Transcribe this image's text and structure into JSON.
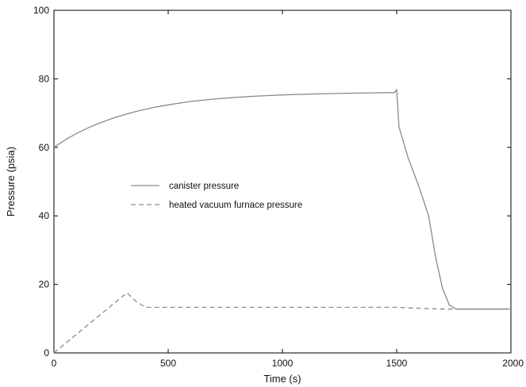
{
  "chart_data": {
    "type": "line",
    "title": "",
    "xlabel": "Time (s)",
    "ylabel": "Pressure (psia)",
    "xlim": [
      0,
      2000
    ],
    "ylim": [
      0,
      100
    ],
    "x_ticks": [
      0,
      500,
      1000,
      1500,
      2000
    ],
    "y_ticks": [
      0,
      20,
      40,
      60,
      80,
      100
    ],
    "grid": false,
    "legend_position": "center-left",
    "series": [
      {
        "name": "canister pressure",
        "style": "solid",
        "color": "#8a8a8a",
        "points": [
          [
            0,
            60
          ],
          [
            50,
            62.2
          ],
          [
            100,
            64.1
          ],
          [
            150,
            65.7
          ],
          [
            200,
            67.1
          ],
          [
            250,
            68.3
          ],
          [
            300,
            69.4
          ],
          [
            350,
            70.3
          ],
          [
            400,
            71.1
          ],
          [
            450,
            71.8
          ],
          [
            500,
            72.4
          ],
          [
            600,
            73.4
          ],
          [
            700,
            74.1
          ],
          [
            800,
            74.6
          ],
          [
            900,
            75
          ],
          [
            1000,
            75.3
          ],
          [
            1100,
            75.5
          ],
          [
            1200,
            75.7
          ],
          [
            1300,
            75.8
          ],
          [
            1400,
            75.9
          ],
          [
            1490,
            76
          ],
          [
            1500,
            76.8
          ],
          [
            1510,
            66
          ],
          [
            1550,
            57
          ],
          [
            1600,
            48
          ],
          [
            1640,
            40
          ],
          [
            1670,
            28
          ],
          [
            1700,
            19
          ],
          [
            1730,
            14
          ],
          [
            1760,
            12.8
          ],
          [
            1800,
            12.8
          ],
          [
            1900,
            12.8
          ],
          [
            2000,
            12.8
          ]
        ]
      },
      {
        "name": "heated vacuum furnace pressure",
        "style": "dashed",
        "color": "#8a8a8a",
        "points": [
          [
            0,
            0
          ],
          [
            100,
            5.5
          ],
          [
            200,
            11
          ],
          [
            300,
            16.5
          ],
          [
            320,
            17.5
          ],
          [
            360,
            15
          ],
          [
            400,
            13.3
          ],
          [
            500,
            13.3
          ],
          [
            1000,
            13.3
          ],
          [
            1500,
            13.3
          ],
          [
            1600,
            13
          ],
          [
            1700,
            12.8
          ],
          [
            2000,
            12.8
          ]
        ]
      }
    ]
  }
}
